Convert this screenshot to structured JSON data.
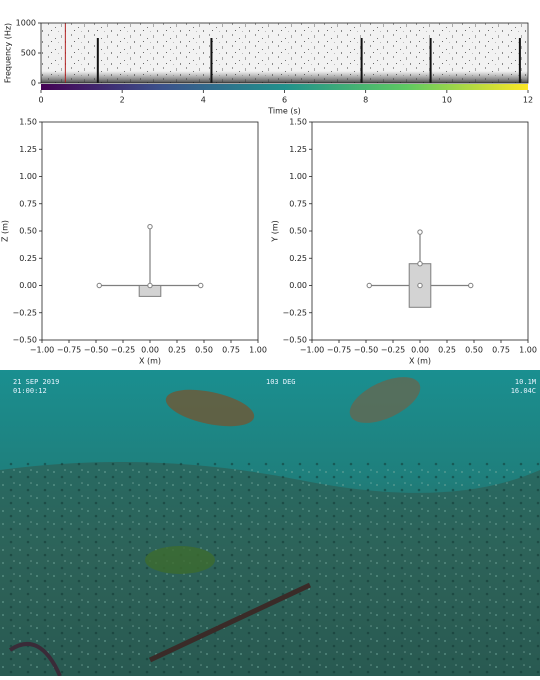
{
  "chart_data": [
    {
      "type": "spectrogram",
      "xlabel": "Time (s)",
      "ylabel": "Frequency (Hz)",
      "xlim": [
        0,
        12
      ],
      "xticks": [
        0,
        2,
        4,
        6,
        8,
        10,
        12
      ],
      "ylim": [
        0,
        1000
      ],
      "yticks": [
        0,
        500,
        1000
      ],
      "cursor": 0.6,
      "cursor_color": "#b22222",
      "click_times": [
        1.4,
        4.2,
        7.9,
        9.6,
        11.8
      ]
    },
    {
      "type": "array",
      "xlabel": "X (m)",
      "ylabel": "Z (m)",
      "xlim": [
        -1,
        1
      ],
      "ylim": [
        -0.5,
        1.5
      ],
      "xticks": [
        {
          "value": -1,
          "label": "−1.00"
        },
        {
          "value": -0.75,
          "label": "−0.75"
        },
        {
          "value": -0.5,
          "label": "−0.50"
        },
        {
          "value": -0.25,
          "label": "−0.25"
        },
        {
          "value": 0,
          "label": "0.00"
        },
        {
          "value": 0.25,
          "label": "0.25"
        },
        {
          "value": 0.5,
          "label": "0.50"
        },
        {
          "value": 0.75,
          "label": "0.75"
        },
        {
          "value": 1,
          "label": "1.00"
        }
      ],
      "yticks": [
        {
          "value": -0.5,
          "label": "−0.50"
        },
        {
          "value": -0.25,
          "label": "−0.25"
        },
        {
          "value": 0,
          "label": "0.00"
        },
        {
          "value": 0.25,
          "label": "0.25"
        },
        {
          "value": 0.5,
          "label": "0.50"
        },
        {
          "value": 0.75,
          "label": "0.75"
        },
        {
          "value": 1,
          "label": "1.00"
        },
        {
          "value": 1.25,
          "label": "1.25"
        },
        {
          "value": 1.5,
          "label": "1.50"
        }
      ],
      "x": [
        -0.47,
        0,
        0.47,
        0
      ],
      "y": [
        0,
        0,
        0,
        0.54
      ],
      "box": {
        "x": [
          -0.1,
          0.1
        ],
        "y": [
          -0.1,
          0
        ]
      },
      "color": "#7f7f7f"
    },
    {
      "type": "array",
      "xlabel": "X (m)",
      "ylabel": "Y (m)",
      "xlim": [
        -1,
        1
      ],
      "ylim": [
        -0.5,
        1.5
      ],
      "xticks": [
        {
          "value": -1,
          "label": "−1.00"
        },
        {
          "value": -0.75,
          "label": "−0.75"
        },
        {
          "value": -0.5,
          "label": "−0.50"
        },
        {
          "value": -0.25,
          "label": "−0.25"
        },
        {
          "value": 0,
          "label": "0.00"
        },
        {
          "value": 0.25,
          "label": "0.25"
        },
        {
          "value": 0.5,
          "label": "0.50"
        },
        {
          "value": 0.75,
          "label": "0.75"
        },
        {
          "value": 1,
          "label": "1.00"
        }
      ],
      "yticks": [
        {
          "value": -0.5,
          "label": "−0.50"
        },
        {
          "value": -0.25,
          "label": "−0.25"
        },
        {
          "value": 0,
          "label": "0.00"
        },
        {
          "value": 0.25,
          "label": "0.25"
        },
        {
          "value": 0.5,
          "label": "0.50"
        },
        {
          "value": 0.75,
          "label": "0.75"
        },
        {
          "value": 1,
          "label": "1.00"
        },
        {
          "value": 1.25,
          "label": "1.25"
        },
        {
          "value": 1.5,
          "label": "1.50"
        }
      ],
      "x": [
        -0.47,
        0,
        0.47,
        0,
        0
      ],
      "y": [
        0,
        0,
        0,
        0.2,
        0.49
      ],
      "box": {
        "x": [
          -0.1,
          0.1
        ],
        "y": [
          -0.2,
          0.2
        ]
      },
      "color": "#7f7f7f"
    }
  ],
  "video": {
    "date": "21 SEP 2019",
    "time": "01:00:12",
    "heading": "103 DEG",
    "depth": "10.1M",
    "temperature": "16.04C"
  }
}
